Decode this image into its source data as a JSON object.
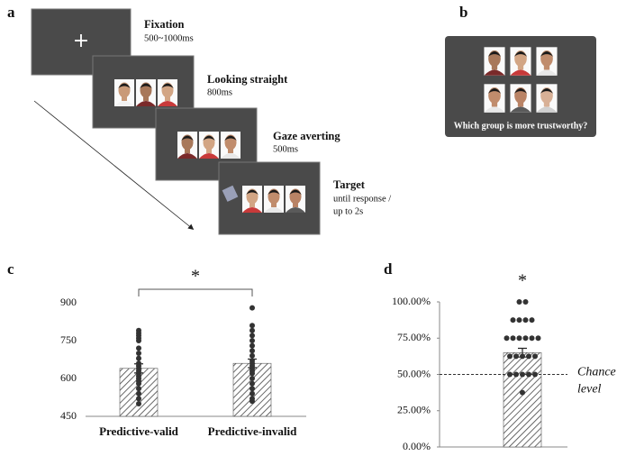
{
  "panel_a": {
    "label": "a",
    "steps": [
      {
        "title": "Fixation",
        "detail": [
          "500~1000ms"
        ],
        "symbol": "+"
      },
      {
        "title": "Looking straight",
        "detail": [
          "800ms"
        ]
      },
      {
        "title": "Gaze averting",
        "detail": [
          "500ms"
        ]
      },
      {
        "title": "Target",
        "detail": [
          "until response /",
          "up to 2s"
        ]
      }
    ]
  },
  "panel_b": {
    "label": "b",
    "question": "Which group is more trustworthy?"
  },
  "chart_data": [
    {
      "type": "bar",
      "label": "c",
      "categories": [
        "Predictive-valid",
        "Predictive-invalid"
      ],
      "values": [
        640,
        660
      ],
      "errors": [
        18,
        17
      ],
      "points": [
        [
          790,
          780,
          770,
          760,
          750,
          720,
          700,
          680,
          660,
          650,
          640,
          630,
          620,
          610,
          600,
          590,
          580,
          560,
          540,
          520,
          500
        ],
        [
          880,
          810,
          790,
          770,
          750,
          730,
          710,
          690,
          670,
          660,
          650,
          640,
          630,
          620,
          600,
          580,
          560,
          540,
          520,
          510
        ]
      ],
      "ylim": [
        450,
        900
      ],
      "yticks": [
        450,
        600,
        750,
        900
      ],
      "significance": "*"
    },
    {
      "type": "bar",
      "label": "d",
      "values": [
        65
      ],
      "errors": [
        3
      ],
      "points": [
        [
          100,
          100,
          87.5,
          87.5,
          87.5,
          87.5,
          75,
          75,
          75,
          75,
          75,
          75,
          62.5,
          62.5,
          62.5,
          62.5,
          62.5,
          50,
          50,
          50,
          50,
          50,
          37.5
        ]
      ],
      "ylim": [
        0,
        100
      ],
      "yticks": [
        {
          "value": 0,
          "label": "0.00%"
        },
        {
          "value": 25,
          "label": "25.00%"
        },
        {
          "value": 50,
          "label": "50.00%"
        },
        {
          "value": 75,
          "label": "75.00%"
        },
        {
          "value": 100,
          "label": "100.00%"
        }
      ],
      "significance": "*",
      "reference_line": 50,
      "reference_label": [
        "Chance",
        "level"
      ]
    }
  ]
}
